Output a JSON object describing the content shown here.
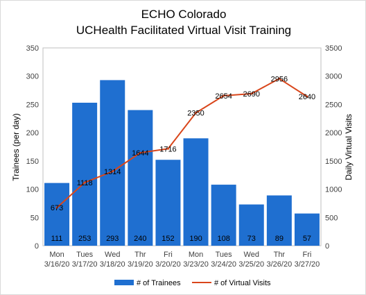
{
  "chart_data": {
    "type": "bar",
    "title": [
      "ECHO Colorado",
      "UCHealth Facilitated Virtual Visit Training"
    ],
    "categories": [
      [
        "Mon",
        "3/16/20"
      ],
      [
        "Tues",
        "3/17/20"
      ],
      [
        "Wed",
        "3/18/20"
      ],
      [
        "Thr",
        "3/19/20"
      ],
      [
        "Fri",
        "3/20/20"
      ],
      [
        "Mon",
        "3/23/20"
      ],
      [
        "Tues",
        "3/24/20"
      ],
      [
        "Wed",
        "3/25/20"
      ],
      [
        "Thr",
        "3/26/20"
      ],
      [
        "Fri",
        "3/27/20"
      ]
    ],
    "series": [
      {
        "name": "# of Trainees",
        "type": "bar",
        "axis": "left",
        "color": "#1F6FD0",
        "values": [
          111,
          253,
          293,
          240,
          152,
          190,
          108,
          73,
          89,
          57
        ]
      },
      {
        "name": "# of Virtual Visits",
        "type": "line",
        "axis": "right",
        "color": "#D9461B",
        "values": [
          673,
          1118,
          1314,
          1644,
          1716,
          2350,
          2654,
          2690,
          2956,
          2640
        ]
      }
    ],
    "ylabel": "Trainees (per day)",
    "ylabel_right": "Daily Virtual Visits",
    "ylim": [
      0,
      350
    ],
    "yticks": [
      0,
      50,
      100,
      150,
      200,
      250,
      300,
      350
    ],
    "ylim_right": [
      0,
      3500
    ],
    "yticks_right": [
      0,
      500,
      1000,
      1500,
      2000,
      2500,
      3000,
      3500
    ],
    "grid": false,
    "legend": "bottom"
  }
}
